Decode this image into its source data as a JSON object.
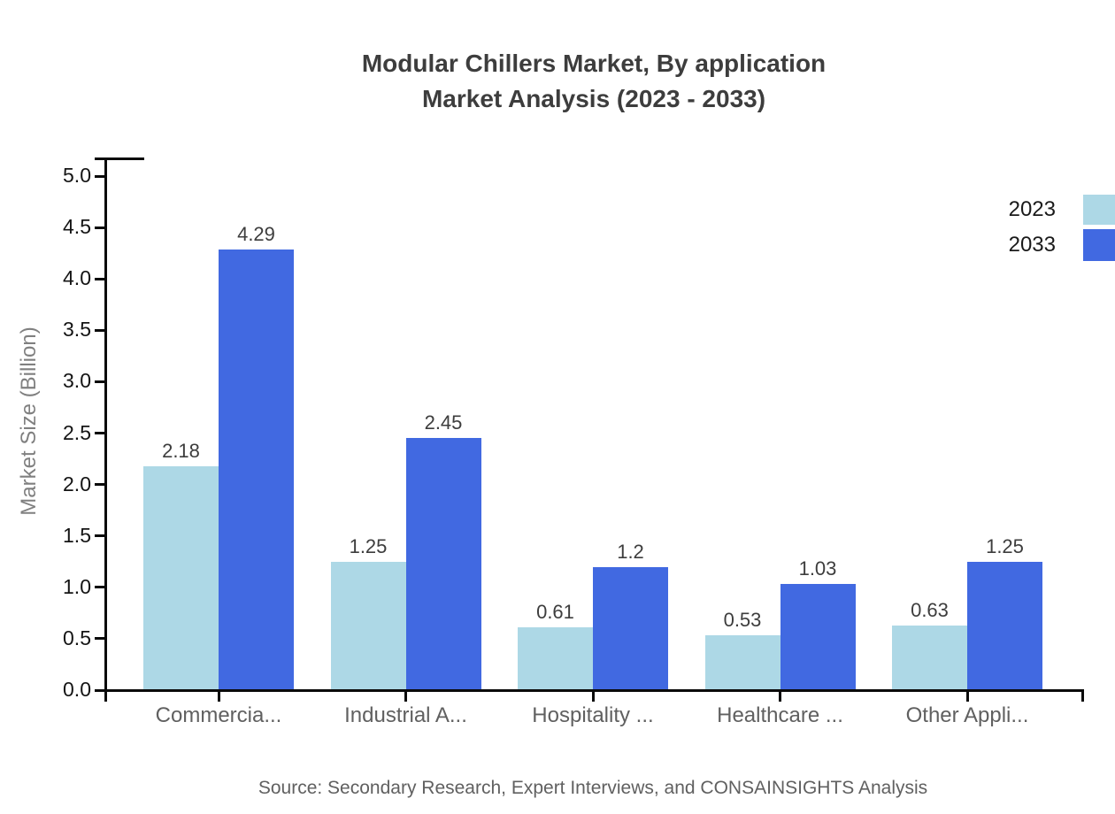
{
  "title": {
    "line1": "Modular Chillers Market, By application",
    "line2": "Market Analysis (2023 - 2033)"
  },
  "source": "Source: Secondary Research, Expert Interviews, and CONSAINSIGHTS Analysis",
  "chart_data": {
    "type": "bar",
    "title": "Modular Chillers Market, By application Market Analysis (2023 - 2033)",
    "categories": [
      "Commercia...",
      "Industrial A...",
      "Hospitality ...",
      "Healthcare ...",
      "Other Appli..."
    ],
    "series": [
      {
        "name": "2023",
        "color": "#ADD8E6",
        "values": [
          2.18,
          1.25,
          0.61,
          0.53,
          0.63
        ]
      },
      {
        "name": "2033",
        "color": "#4169E1",
        "values": [
          4.29,
          2.45,
          1.2,
          1.03,
          1.25
        ]
      }
    ],
    "xlabel": "",
    "ylabel": "Market Size (Billion)",
    "ylim": [
      0,
      5
    ],
    "ytick_step": 0.5,
    "yticks": [
      "0.0",
      "0.5",
      "1.0",
      "1.5",
      "2.0",
      "2.5",
      "3.0",
      "3.5",
      "4.0",
      "4.5",
      "5.0"
    ],
    "grid": false,
    "legend_position": "top-right",
    "value_labels_shown": true
  },
  "colors": {
    "series_2023": "#ADD8E6",
    "series_2033": "#4169E1",
    "axis": "#0a0a0a",
    "title_text": "#3d3d3d",
    "tick_label_text": "#141414",
    "category_label_text": "#606060",
    "value_label_text": "#3d3d3d",
    "ylabel_text": "#808080",
    "source_text": "#606060"
  }
}
